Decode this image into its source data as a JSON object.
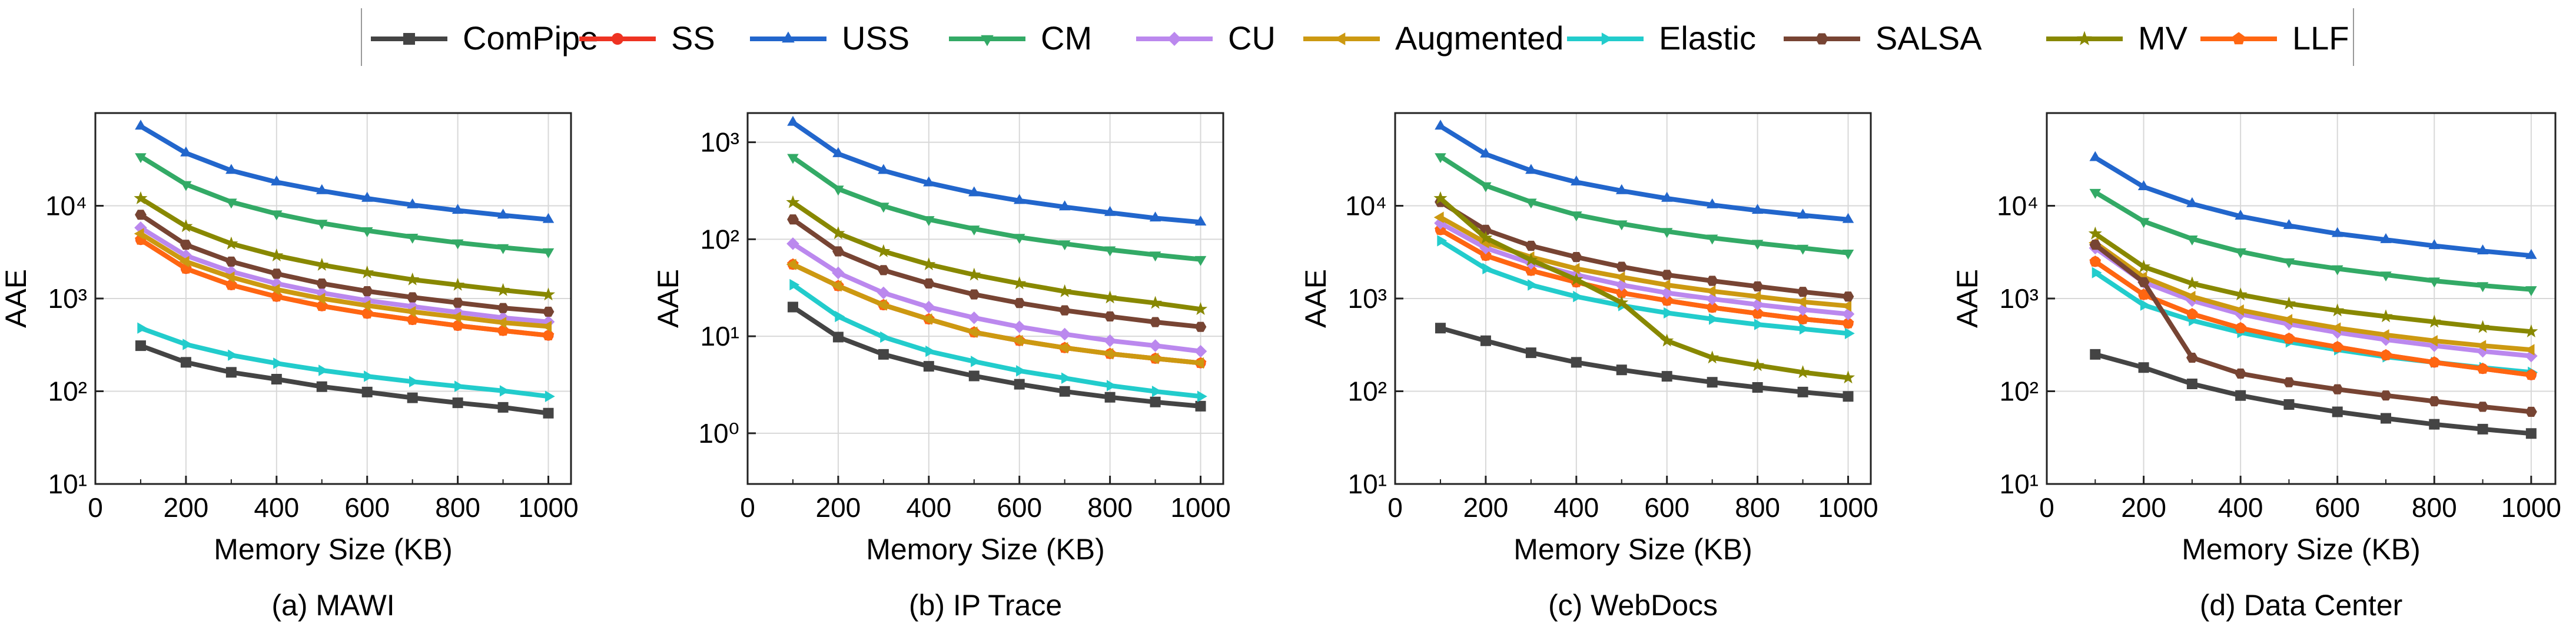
{
  "chart_data": [
    {
      "type": "line",
      "caption": "(a) MAWI",
      "xlabel": "Memory Size (KB)",
      "ylabel": "AAE",
      "yscale": "log",
      "xlim": [
        0,
        1050
      ],
      "ylim": [
        10,
        100000
      ],
      "x_ticks": [
        0,
        200,
        400,
        600,
        800,
        1000
      ],
      "y_ticks": [
        10,
        100,
        1000,
        10000
      ],
      "x": [
        100,
        200,
        300,
        400,
        500,
        600,
        700,
        800,
        900,
        1000
      ],
      "series": [
        {
          "name": "ComPipe",
          "values": [
            310,
            205,
            160,
            135,
            112,
            98,
            85,
            75,
            67,
            58
          ]
        },
        {
          "name": "SS",
          "values": [
            4300,
            2100,
            1400,
            1050,
            830,
            690,
            590,
            510,
            450,
            400
          ]
        },
        {
          "name": "USS",
          "values": [
            72000,
            37000,
            24000,
            18000,
            14500,
            12000,
            10200,
            8900,
            7900,
            7100
          ]
        },
        {
          "name": "CM",
          "values": [
            34000,
            17000,
            11000,
            8200,
            6500,
            5400,
            4600,
            4000,
            3550,
            3200
          ]
        },
        {
          "name": "CU",
          "values": [
            5800,
            2900,
            1950,
            1450,
            1150,
            950,
            820,
            710,
            620,
            560
          ]
        },
        {
          "name": "Augmented",
          "values": [
            5000,
            2500,
            1700,
            1250,
            1000,
            840,
            720,
            630,
            550,
            500
          ]
        },
        {
          "name": "Elastic",
          "values": [
            480,
            320,
            245,
            200,
            168,
            145,
            127,
            113,
            101,
            88
          ]
        },
        {
          "name": "SALSA",
          "values": [
            8000,
            3800,
            2500,
            1850,
            1450,
            1200,
            1030,
            900,
            790,
            720
          ]
        },
        {
          "name": "MV",
          "values": [
            12000,
            6000,
            3900,
            2900,
            2300,
            1900,
            1600,
            1400,
            1230,
            1100
          ]
        },
        {
          "name": "LLF",
          "values": [
            4300,
            2100,
            1400,
            1050,
            830,
            690,
            590,
            510,
            450,
            400
          ]
        }
      ]
    },
    {
      "type": "line",
      "caption": "(b) IP Trace",
      "xlabel": "Memory Size (KB)",
      "ylabel": "AAE",
      "yscale": "log",
      "xlim": [
        0,
        1050
      ],
      "ylim": [
        0.3,
        2000
      ],
      "x_ticks": [
        0,
        200,
        400,
        600,
        800,
        1000
      ],
      "y_ticks": [
        1,
        10,
        100,
        1000
      ],
      "x": [
        100,
        200,
        300,
        400,
        500,
        600,
        700,
        800,
        900,
        1000
      ],
      "series": [
        {
          "name": "ComPipe",
          "values": [
            20,
            9.8,
            6.5,
            4.9,
            3.9,
            3.2,
            2.7,
            2.35,
            2.1,
            1.9
          ]
        },
        {
          "name": "SS",
          "values": [
            55,
            33,
            21,
            15,
            11,
            9,
            7.6,
            6.6,
            5.9,
            5.3
          ]
        },
        {
          "name": "USS",
          "values": [
            1600,
            760,
            510,
            380,
            300,
            250,
            215,
            188,
            165,
            150
          ]
        },
        {
          "name": "CM",
          "values": [
            700,
            330,
            220,
            160,
            128,
            105,
            90,
            78,
            69,
            62
          ]
        },
        {
          "name": "CU",
          "values": [
            90,
            45,
            28,
            20,
            15.5,
            12.5,
            10.5,
            9,
            8,
            7
          ]
        },
        {
          "name": "Augmented",
          "values": [
            55,
            33,
            21,
            15,
            11,
            9,
            7.6,
            6.6,
            5.9,
            5.3
          ]
        },
        {
          "name": "Elastic",
          "values": [
            34,
            16,
            9.8,
            7,
            5.5,
            4.4,
            3.7,
            3.1,
            2.7,
            2.4
          ]
        },
        {
          "name": "SALSA",
          "values": [
            160,
            75,
            48,
            35,
            27,
            22,
            18.5,
            16,
            14,
            12.5
          ]
        },
        {
          "name": "MV",
          "values": [
            240,
            115,
            75,
            55,
            43,
            35,
            29,
            25,
            22,
            19
          ]
        },
        {
          "name": "LLF",
          "values": [
            55,
            33,
            21,
            15,
            11,
            9,
            7.6,
            6.6,
            5.9,
            5.3
          ]
        }
      ]
    },
    {
      "type": "line",
      "caption": "(c) WebDocs",
      "xlabel": "Memory Size (KB)",
      "ylabel": "AAE",
      "yscale": "log",
      "xlim": [
        0,
        1050
      ],
      "ylim": [
        10,
        100000
      ],
      "x_ticks": [
        0,
        200,
        400,
        600,
        800,
        1000
      ],
      "y_ticks": [
        10,
        100,
        1000,
        10000
      ],
      "x": [
        100,
        200,
        300,
        400,
        500,
        600,
        700,
        800,
        900,
        1000
      ],
      "series": [
        {
          "name": "ComPipe",
          "values": [
            480,
            350,
            260,
            205,
            170,
            145,
            125,
            110,
            98,
            88
          ]
        },
        {
          "name": "SS",
          "values": [
            5500,
            2900,
            2000,
            1500,
            1150,
            950,
            800,
            690,
            600,
            540
          ]
        },
        {
          "name": "USS",
          "values": [
            72000,
            36000,
            24000,
            18000,
            14500,
            12000,
            10200,
            8900,
            7900,
            7100
          ]
        },
        {
          "name": "CM",
          "values": [
            34000,
            16500,
            11000,
            8000,
            6400,
            5300,
            4500,
            3950,
            3500,
            3100
          ]
        },
        {
          "name": "CU",
          "values": [
            6500,
            3500,
            2400,
            1800,
            1400,
            1150,
            990,
            860,
            760,
            680
          ]
        },
        {
          "name": "Augmented",
          "values": [
            7500,
            4000,
            2800,
            2100,
            1700,
            1400,
            1200,
            1050,
            920,
            830
          ]
        },
        {
          "name": "Elastic",
          "values": [
            4200,
            2100,
            1400,
            1050,
            840,
            700,
            600,
            525,
            470,
            420
          ]
        },
        {
          "name": "SALSA",
          "values": [
            11000,
            5500,
            3700,
            2800,
            2200,
            1800,
            1550,
            1350,
            1180,
            1050
          ]
        },
        {
          "name": "MV",
          "values": [
            12000,
            4500,
            2600,
            1600,
            900,
            350,
            230,
            190,
            160,
            140
          ]
        },
        {
          "name": "LLF",
          "values": [
            5500,
            2900,
            2000,
            1500,
            1150,
            950,
            800,
            690,
            600,
            540
          ]
        }
      ]
    },
    {
      "type": "line",
      "caption": "(d) Data Center",
      "xlabel": "Memory Size (KB)",
      "ylabel": "AAE",
      "yscale": "log",
      "xlim": [
        0,
        1050
      ],
      "ylim": [
        10,
        100000
      ],
      "x_ticks": [
        0,
        200,
        400,
        600,
        800,
        1000
      ],
      "y_ticks": [
        10,
        100,
        1000,
        10000
      ],
      "x": [
        100,
        200,
        300,
        400,
        500,
        600,
        700,
        800,
        900,
        1000
      ],
      "series": [
        {
          "name": "ComPipe",
          "values": [
            250,
            180,
            120,
            90,
            72,
            60,
            51,
            44,
            39,
            35
          ]
        },
        {
          "name": "SS",
          "values": [
            2500,
            1100,
            680,
            480,
            370,
            300,
            245,
            205,
            175,
            150
          ]
        },
        {
          "name": "USS",
          "values": [
            33000,
            16000,
            10500,
            7700,
            6100,
            5000,
            4300,
            3700,
            3250,
            2900
          ]
        },
        {
          "name": "CM",
          "values": [
            14000,
            6800,
            4400,
            3200,
            2500,
            2100,
            1800,
            1550,
            1380,
            1250
          ]
        },
        {
          "name": "CU",
          "values": [
            3500,
            1500,
            950,
            680,
            530,
            430,
            360,
            310,
            270,
            240
          ]
        },
        {
          "name": "Augmented",
          "values": [
            4000,
            1700,
            1050,
            750,
            590,
            480,
            405,
            350,
            310,
            280
          ]
        },
        {
          "name": "Elastic",
          "values": [
            1900,
            850,
            580,
            430,
            340,
            280,
            235,
            205,
            180,
            160
          ]
        },
        {
          "name": "SALSA",
          "values": [
            3800,
            1500,
            230,
            155,
            125,
            105,
            90,
            78,
            68,
            60
          ]
        },
        {
          "name": "MV",
          "values": [
            5000,
            2200,
            1450,
            1100,
            880,
            740,
            640,
            560,
            490,
            440
          ]
        },
        {
          "name": "LLF",
          "values": [
            2500,
            1100,
            680,
            480,
            370,
            300,
            245,
            205,
            175,
            150
          ]
        }
      ]
    }
  ],
  "legend": [
    {
      "name": "ComPipe",
      "color": "#444444",
      "marker": "square"
    },
    {
      "name": "SS",
      "color": "#ee3322",
      "marker": "circle"
    },
    {
      "name": "USS",
      "color": "#2266cc",
      "marker": "triangle-up"
    },
    {
      "name": "CM",
      "color": "#33aa66",
      "marker": "triangle-down"
    },
    {
      "name": "CU",
      "color": "#bb88ee",
      "marker": "diamond"
    },
    {
      "name": "Augmented",
      "color": "#cc9911",
      "marker": "triangle-left"
    },
    {
      "name": "Elastic",
      "color": "#22cccc",
      "marker": "triangle-right"
    },
    {
      "name": "SALSA",
      "color": "#774433",
      "marker": "hexagon"
    },
    {
      "name": "MV",
      "color": "#888800",
      "marker": "star"
    },
    {
      "name": "LLF",
      "color": "#ff6611",
      "marker": "pentagon"
    }
  ]
}
